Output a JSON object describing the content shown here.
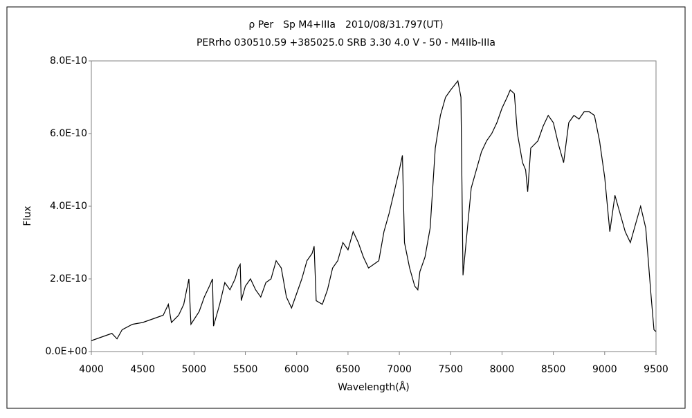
{
  "chart_data": {
    "type": "line",
    "title": "ρ Per　Sp M4+IIIa　2010/08/31.797(UT)",
    "subtitle": "PERrho 030510.59 +385025.0 SRB 3.30 4.0 V - 50 - M4IIb-IIIa",
    "x_label": "Wavelength(Å)",
    "y_label": "Flux",
    "xlim": [
      4000,
      9500
    ],
    "ylim": [
      0,
      8e-10
    ],
    "xticks": [
      4000,
      4500,
      5000,
      5500,
      6000,
      6500,
      7000,
      7500,
      8000,
      8500,
      9000,
      9500
    ],
    "yticks": [
      {
        "value": 0,
        "label": "0.0E+00"
      },
      {
        "value": 2e-10,
        "label": "2.0E-10"
      },
      {
        "value": 4e-10,
        "label": "4.0E-10"
      },
      {
        "value": 6e-10,
        "label": "6.0E-10"
      },
      {
        "value": 8e-10,
        "label": "8.0E-10"
      }
    ],
    "color": "#000000",
    "x": [
      4000,
      4100,
      4200,
      4250,
      4300,
      4400,
      4500,
      4600,
      4700,
      4750,
      4780,
      4850,
      4900,
      4950,
      4970,
      5050,
      5100,
      5150,
      5180,
      5190,
      5250,
      5300,
      5350,
      5400,
      5430,
      5450,
      5460,
      5500,
      5550,
      5600,
      5650,
      5700,
      5750,
      5800,
      5850,
      5900,
      5950,
      6000,
      6050,
      6100,
      6150,
      6170,
      6190,
      6250,
      6300,
      6350,
      6400,
      6450,
      6500,
      6550,
      6600,
      6650,
      6700,
      6750,
      6800,
      6850,
      6900,
      6950,
      7000,
      7030,
      7050,
      7100,
      7150,
      7180,
      7200,
      7250,
      7300,
      7350,
      7400,
      7450,
      7500,
      7570,
      7600,
      7620,
      7650,
      7700,
      7750,
      7800,
      7850,
      7900,
      7950,
      8000,
      8050,
      8080,
      8120,
      8150,
      8200,
      8230,
      8250,
      8280,
      8350,
      8400,
      8450,
      8500,
      8550,
      8600,
      8650,
      8700,
      8750,
      8800,
      8850,
      8900,
      8950,
      9000,
      9050,
      9100,
      9150,
      9200,
      9250,
      9300,
      9350,
      9400,
      9450,
      9480,
      9500
    ],
    "values": [
      3e-11,
      4e-11,
      5e-11,
      3.5e-11,
      6e-11,
      7.5e-11,
      8e-11,
      9e-11,
      1e-10,
      1.3e-10,
      8e-11,
      1e-10,
      1.3e-10,
      2e-10,
      7.5e-11,
      1.1e-10,
      1.5e-10,
      1.8e-10,
      2e-10,
      7e-11,
      1.3e-10,
      1.9e-10,
      1.7e-10,
      2e-10,
      2.3e-10,
      2.4e-10,
      1.4e-10,
      1.8e-10,
      2e-10,
      1.7e-10,
      1.5e-10,
      1.9e-10,
      2e-10,
      2.5e-10,
      2.3e-10,
      1.5e-10,
      1.2e-10,
      1.6e-10,
      2e-10,
      2.5e-10,
      2.7e-10,
      2.9e-10,
      1.4e-10,
      1.3e-10,
      1.7e-10,
      2.3e-10,
      2.5e-10,
      3e-10,
      2.8e-10,
      3.3e-10,
      3e-10,
      2.6e-10,
      2.3e-10,
      2.4e-10,
      2.5e-10,
      3.3e-10,
      3.8e-10,
      4.4e-10,
      5e-10,
      5.4e-10,
      3e-10,
      2.3e-10,
      1.8e-10,
      1.7e-10,
      2.2e-10,
      2.6e-10,
      3.4e-10,
      5.6e-10,
      6.5e-10,
      7e-10,
      7.2e-10,
      7.45e-10,
      7e-10,
      2.1e-10,
      3e-10,
      4.5e-10,
      5e-10,
      5.5e-10,
      5.8e-10,
      6e-10,
      6.3e-10,
      6.7e-10,
      7e-10,
      7.2e-10,
      7.1e-10,
      6e-10,
      5.2e-10,
      5e-10,
      4.4e-10,
      5.6e-10,
      5.8e-10,
      6.2e-10,
      6.5e-10,
      6.3e-10,
      5.7e-10,
      5.2e-10,
      6.3e-10,
      6.5e-10,
      6.4e-10,
      6.6e-10,
      6.6e-10,
      6.5e-10,
      5.8e-10,
      4.8e-10,
      3.3e-10,
      4.3e-10,
      3.8e-10,
      3.3e-10,
      3e-10,
      3.5e-10,
      4e-10,
      3.4e-10,
      1.6e-10,
      6e-11,
      5.5e-11
    ]
  }
}
